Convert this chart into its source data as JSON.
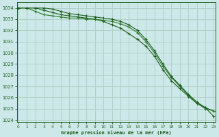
{
  "title": "Graphe pression niveau de la mer (hPa)",
  "background_color": "#cde8e8",
  "grid_color": "#b0d0c8",
  "line_color_dark": "#1a5c1a",
  "line_color_mid": "#2a7a2a",
  "xlim_min": -0.2,
  "xlim_max": 23.2,
  "ylim_min": 1023.8,
  "ylim_max": 1034.5,
  "yticks": [
    1024,
    1025,
    1026,
    1027,
    1028,
    1029,
    1030,
    1031,
    1032,
    1033,
    1034
  ],
  "xticks": [
    0,
    1,
    2,
    3,
    4,
    5,
    6,
    7,
    8,
    9,
    10,
    11,
    12,
    13,
    14,
    15,
    16,
    17,
    18,
    19,
    20,
    21,
    22,
    23
  ],
  "series1": [
    1034.0,
    1034.0,
    1034.0,
    1033.8,
    1033.6,
    1033.4,
    1033.3,
    1033.2,
    1033.1,
    1033.0,
    1032.8,
    1032.5,
    1032.2,
    1031.7,
    1031.2,
    1030.6,
    1029.7,
    1028.5,
    1027.5,
    1026.8,
    1026.1,
    1025.5,
    1025.1,
    1024.8
  ],
  "series2": [
    1034.0,
    1034.0,
    1033.7,
    1033.4,
    1033.3,
    1033.2,
    1033.1,
    1033.1,
    1033.0,
    1033.0,
    1032.9,
    1032.8,
    1032.6,
    1032.3,
    1031.8,
    1031.0,
    1030.0,
    1028.8,
    1027.8,
    1027.0,
    1026.2,
    1025.5,
    1025.0,
    1024.8
  ],
  "series3": [
    1034.0,
    1034.0,
    1034.0,
    1034.0,
    1033.9,
    1033.7,
    1033.5,
    1033.4,
    1033.3,
    1033.2,
    1033.1,
    1033.0,
    1032.8,
    1032.5,
    1032.0,
    1031.2,
    1030.2,
    1029.0,
    1027.9,
    1027.1,
    1026.3,
    1025.6,
    1025.1,
    1024.3
  ]
}
